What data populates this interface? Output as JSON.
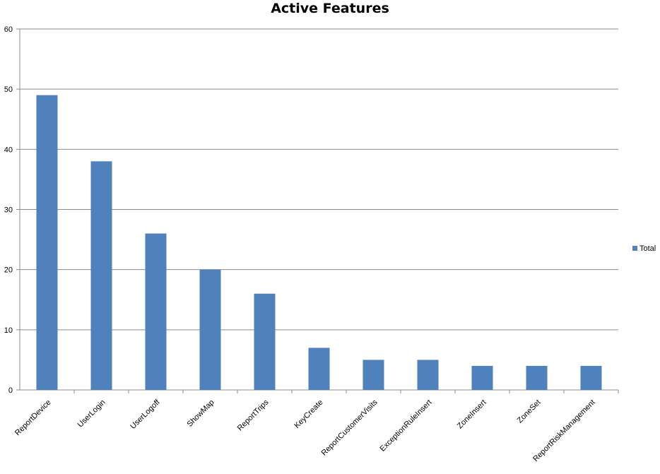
{
  "chart_data": {
    "type": "bar",
    "title": "Active Features",
    "categories": [
      "ReportDevice",
      "UserLogin",
      "UserLogoff",
      "ShowMap",
      "ReportTrips",
      "KeyCreate",
      "ReportCustomerVisits",
      "ExceptionRuleInsert",
      "ZoneInsert",
      "ZoneSet",
      "ReportRiskManagement"
    ],
    "series": [
      {
        "name": "Total",
        "values": [
          49,
          38,
          26,
          20,
          16,
          7,
          5,
          5,
          4,
          4,
          4
        ],
        "color": "#4F81BD"
      }
    ],
    "ylim": [
      0,
      60
    ],
    "yticks": [
      0,
      10,
      20,
      30,
      40,
      50,
      60
    ],
    "grid": true,
    "legend": "right"
  }
}
